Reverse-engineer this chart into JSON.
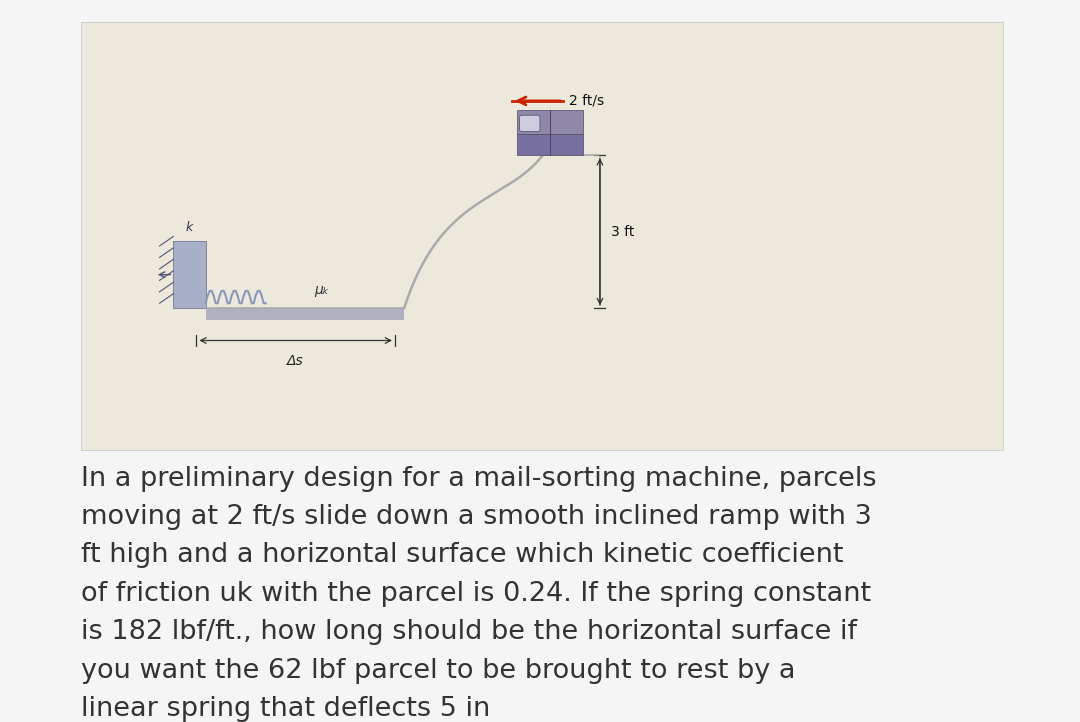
{
  "fig_bg": "#f5f5f5",
  "diagram_bg": "#ede8dc",
  "diagram_border": "#cccccc",
  "velocity_label": "2 ft/s",
  "height_label": "3 ft",
  "mu_label": "μₖ",
  "k_label": "k",
  "delta_s_label": "Δs",
  "problem_text": "In a preliminary design for a mail-sorting machine, parcels\nmoving at 2 ft/s slide down a smooth inclined ramp with 3\nft high and a horizontal surface which kinetic coefficient\nof friction uk with the parcel is 0.24. If the spring constant\nis 182 lbf/ft., how long should be the horizontal surface if\nyou want the 62 lbf parcel to be brought to rest by a\nlinear spring that deflects 5 in",
  "text_fontsize": 19.5,
  "label_fontsize": 9,
  "ramp_color": "#aaaaaa",
  "parcel_top_color": "#9088a8",
  "parcel_bottom_color": "#7870a0",
  "parcel_line_color": "#504860",
  "arrow_color": "#cc2200",
  "spring_color": "#8898b8",
  "wall_color": "#8898b8",
  "wall_bg_color": "#a8b0c8",
  "ground_color": "#aaaaaa",
  "dim_line_color": "#333333",
  "floor_color": "#b0b0c0"
}
